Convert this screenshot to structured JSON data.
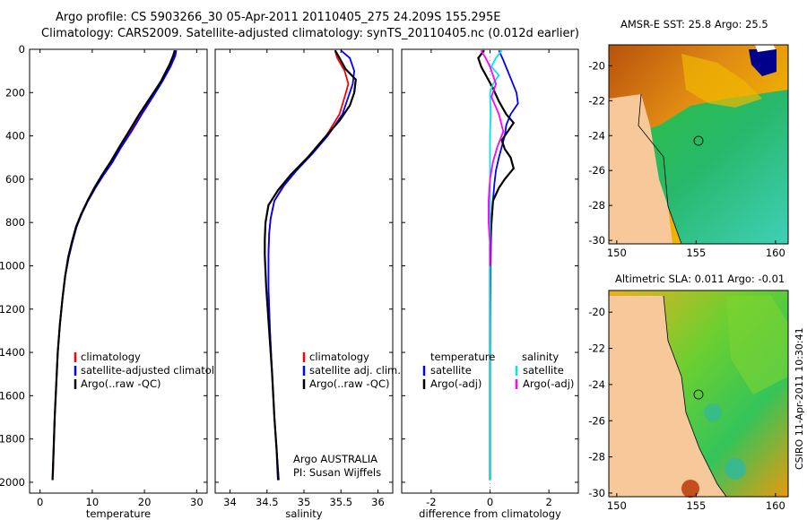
{
  "title_line1": "Argo profile: CS 5903266_30 05-Apr-2011 20110405_275 24.209S 155.295E",
  "title_line2": "Climatology: CARS2009. Satellite-adjusted climatology: synTS_20110405.nc (0.012d earlier)",
  "colors": {
    "climatology": "#ff0000",
    "satellite": "#0000ff",
    "argo": "#000000",
    "sat_salinity": "#00e5ee",
    "argo_adj_salinity": "#ff00ff"
  },
  "chart_data": [
    {
      "type": "line",
      "xlabel": "temperature",
      "xlim": [
        -2,
        32
      ],
      "ylim": [
        0,
        2050
      ],
      "yticks": [
        0,
        200,
        400,
        600,
        800,
        1000,
        1200,
        1400,
        1600,
        1800,
        2000
      ],
      "xticks": [
        0,
        10,
        20,
        30
      ],
      "legend": [
        "climatology",
        "satellite-adjusted climatology",
        "Argo(..raw -QC)"
      ],
      "series": [
        {
          "name": "climatology",
          "color": "#ff0000",
          "points": [
            [
              25.9,
              5
            ],
            [
              25.7,
              30
            ],
            [
              24.7,
              80
            ],
            [
              23.2,
              150
            ],
            [
              21.4,
              220
            ],
            [
              19.3,
              300
            ],
            [
              17.3,
              380
            ],
            [
              15.5,
              450
            ],
            [
              13.8,
              520
            ],
            [
              12.1,
              580
            ],
            [
              10.6,
              640
            ],
            [
              9.2,
              700
            ],
            [
              8.0,
              760
            ],
            [
              7.0,
              820
            ],
            [
              6.2,
              890
            ],
            [
              5.5,
              960
            ],
            [
              4.8,
              1050
            ],
            [
              4.3,
              1150
            ],
            [
              3.8,
              1270
            ],
            [
              3.4,
              1400
            ],
            [
              3.1,
              1550
            ],
            [
              2.8,
              1700
            ],
            [
              2.6,
              1850
            ],
            [
              2.5,
              1960
            ]
          ]
        },
        {
          "name": "satellite-adjusted climatology",
          "color": "#0000ff",
          "points": [
            [
              26.1,
              5
            ],
            [
              25.9,
              30
            ],
            [
              25.0,
              80
            ],
            [
              23.4,
              150
            ],
            [
              21.6,
              220
            ],
            [
              19.5,
              300
            ],
            [
              17.5,
              380
            ],
            [
              15.6,
              450
            ],
            [
              13.9,
              520
            ],
            [
              12.2,
              580
            ],
            [
              10.6,
              640
            ],
            [
              9.2,
              700
            ],
            [
              8.0,
              760
            ],
            [
              7.0,
              820
            ],
            [
              6.2,
              890
            ],
            [
              5.5,
              960
            ],
            [
              4.8,
              1050
            ],
            [
              4.3,
              1150
            ],
            [
              3.8,
              1270
            ],
            [
              3.4,
              1400
            ],
            [
              3.1,
              1550
            ],
            [
              2.8,
              1700
            ],
            [
              2.6,
              1850
            ],
            [
              2.4,
              1990
            ]
          ]
        },
        {
          "name": "Argo(..raw -QC)",
          "color": "#000000",
          "points": [
            [
              25.8,
              5
            ],
            [
              25.5,
              30
            ],
            [
              24.8,
              70
            ],
            [
              23.1,
              150
            ],
            [
              21.2,
              220
            ],
            [
              19.0,
              300
            ],
            [
              17.0,
              380
            ],
            [
              15.2,
              450
            ],
            [
              13.5,
              520
            ],
            [
              11.9,
              580
            ],
            [
              10.4,
              640
            ],
            [
              9.1,
              700
            ],
            [
              7.9,
              760
            ],
            [
              6.9,
              820
            ],
            [
              6.1,
              890
            ],
            [
              5.4,
              960
            ],
            [
              4.8,
              1050
            ],
            [
              4.3,
              1150
            ],
            [
              3.8,
              1270
            ],
            [
              3.4,
              1400
            ],
            [
              3.1,
              1550
            ],
            [
              2.8,
              1700
            ],
            [
              2.6,
              1850
            ],
            [
              2.4,
              1990
            ]
          ]
        }
      ]
    },
    {
      "type": "line",
      "xlabel": "salinity",
      "xlim": [
        33.8,
        36.2
      ],
      "ylim": [
        0,
        2050
      ],
      "xticks": [
        34,
        34.5,
        35,
        35.5,
        36
      ],
      "legend": [
        "climatology",
        "satellite adj. clim.",
        "Argo(..raw -QC)"
      ],
      "annotation": [
        "Argo AUSTRALIA",
        "PI: Susan Wijffels"
      ],
      "series": [
        {
          "name": "climatology",
          "color": "#ff0000",
          "points": [
            [
              35.42,
              5
            ],
            [
              35.45,
              40
            ],
            [
              35.55,
              100
            ],
            [
              35.6,
              160
            ],
            [
              35.55,
              220
            ],
            [
              35.48,
              300
            ],
            [
              35.3,
              400
            ],
            [
              35.1,
              480
            ],
            [
              34.88,
              560
            ],
            [
              34.72,
              630
            ],
            [
              34.6,
              700
            ],
            [
              34.55,
              780
            ],
            [
              34.53,
              850
            ],
            [
              34.52,
              950
            ],
            [
              34.52,
              1100
            ],
            [
              34.54,
              1300
            ],
            [
              34.57,
              1500
            ],
            [
              34.6,
              1700
            ],
            [
              34.63,
              1850
            ],
            [
              34.66,
              1990
            ]
          ]
        },
        {
          "name": "satellite adj. clim.",
          "color": "#0000ff",
          "points": [
            [
              35.5,
              5
            ],
            [
              35.62,
              40
            ],
            [
              35.68,
              100
            ],
            [
              35.66,
              160
            ],
            [
              35.6,
              220
            ],
            [
              35.52,
              300
            ],
            [
              35.32,
              400
            ],
            [
              35.12,
              480
            ],
            [
              34.9,
              560
            ],
            [
              34.73,
              630
            ],
            [
              34.6,
              700
            ],
            [
              34.55,
              780
            ],
            [
              34.53,
              850
            ],
            [
              34.52,
              950
            ],
            [
              34.52,
              1100
            ],
            [
              34.54,
              1300
            ],
            [
              34.57,
              1500
            ],
            [
              34.6,
              1700
            ],
            [
              34.63,
              1850
            ],
            [
              34.66,
              1990
            ]
          ]
        },
        {
          "name": "Argo(..raw -QC)",
          "color": "#000000",
          "points": [
            [
              35.42,
              5
            ],
            [
              35.48,
              40
            ],
            [
              35.56,
              90
            ],
            [
              35.7,
              140
            ],
            [
              35.68,
              200
            ],
            [
              35.62,
              260
            ],
            [
              35.48,
              330
            ],
            [
              35.25,
              420
            ],
            [
              35.05,
              500
            ],
            [
              34.82,
              580
            ],
            [
              34.65,
              650
            ],
            [
              34.52,
              720
            ],
            [
              34.48,
              800
            ],
            [
              34.47,
              880
            ],
            [
              34.47,
              950
            ],
            [
              34.49,
              1100
            ],
            [
              34.53,
              1300
            ],
            [
              34.57,
              1500
            ],
            [
              34.6,
              1700
            ],
            [
              34.63,
              1850
            ],
            [
              34.65,
              1990
            ]
          ]
        }
      ]
    },
    {
      "type": "line",
      "xlabel": "difference from climatology",
      "xlim": [
        -3,
        3
      ],
      "ylim": [
        0,
        2050
      ],
      "xticks": [
        -2,
        0,
        2
      ],
      "legend_left_header": "temperature",
      "legend_right_header": "salinity",
      "legend": [
        "satellite",
        "Argo(-adj)",
        "satellite",
        "Argo(-adj)"
      ],
      "series": [
        {
          "name": "temperature satellite",
          "color": "#0000ff",
          "points": [
            [
              0.3,
              5
            ],
            [
              0.45,
              50
            ],
            [
              0.6,
              100
            ],
            [
              0.75,
              150
            ],
            [
              0.9,
              200
            ],
            [
              0.95,
              250
            ],
            [
              0.7,
              300
            ],
            [
              0.55,
              350
            ],
            [
              0.5,
              400
            ],
            [
              0.4,
              450
            ],
            [
              0.3,
              500
            ],
            [
              0.2,
              560
            ],
            [
              0.15,
              620
            ],
            [
              0.1,
              700
            ],
            [
              0.05,
              800
            ],
            [
              0.03,
              900
            ],
            [
              0.02,
              1000
            ],
            [
              0.01,
              1200
            ],
            [
              0.0,
              1500
            ],
            [
              0.0,
              1800
            ],
            [
              0.0,
              1990
            ]
          ]
        },
        {
          "name": "temperature Argo(-adj)",
          "color": "#000000",
          "points": [
            [
              -0.2,
              5
            ],
            [
              -0.4,
              40
            ],
            [
              -0.3,
              80
            ],
            [
              -0.1,
              130
            ],
            [
              0.1,
              180
            ],
            [
              0.3,
              240
            ],
            [
              0.55,
              300
            ],
            [
              0.8,
              340
            ],
            [
              0.6,
              380
            ],
            [
              0.4,
              420
            ],
            [
              0.5,
              460
            ],
            [
              0.7,
              500
            ],
            [
              0.8,
              550
            ],
            [
              0.5,
              600
            ],
            [
              0.3,
              640
            ],
            [
              0.1,
              700
            ],
            [
              0.05,
              800
            ],
            [
              0.0,
              900
            ],
            [
              0.0,
              1100
            ],
            [
              0.0,
              1400
            ],
            [
              0.0,
              1700
            ],
            [
              0.0,
              1990
            ]
          ]
        },
        {
          "name": "salinity satellite",
          "color": "#00e5ee",
          "points": [
            [
              0.4,
              5
            ],
            [
              0.2,
              40
            ],
            [
              0.05,
              80
            ],
            [
              0.3,
              120
            ],
            [
              0.1,
              160
            ],
            [
              0.0,
              200
            ],
            [
              0.02,
              300
            ],
            [
              0.0,
              400
            ],
            [
              0.0,
              600
            ],
            [
              0.0,
              900
            ],
            [
              0.0,
              1200
            ],
            [
              0.0,
              1500
            ],
            [
              0.0,
              1800
            ],
            [
              0.0,
              1990
            ]
          ]
        },
        {
          "name": "salinity Argo(-adj)",
          "color": "#ff00ff",
          "points": [
            [
              -0.3,
              5
            ],
            [
              -0.15,
              40
            ],
            [
              0.0,
              80
            ],
            [
              0.1,
              120
            ],
            [
              0.2,
              160
            ],
            [
              0.05,
              220
            ],
            [
              0.3,
              300
            ],
            [
              0.45,
              380
            ],
            [
              0.25,
              450
            ],
            [
              0.1,
              520
            ],
            [
              0.0,
              600
            ],
            [
              -0.05,
              700
            ],
            [
              -0.05,
              800
            ],
            [
              0.0,
              900
            ],
            [
              0.0,
              1000
            ]
          ]
        }
      ]
    }
  ],
  "map_top": {
    "title": "AMSR-E SST: 25.8 Argo: 25.5",
    "xticks": [
      "150",
      "155",
      "160"
    ],
    "yticks": [
      "-20",
      "-22",
      "-24",
      "-26",
      "-28",
      "-30"
    ]
  },
  "map_bottom": {
    "title": "Altimetric SLA: 0.011 Argo: -0.01",
    "xticks": [
      "150",
      "155",
      "160"
    ],
    "yticks": [
      "-20",
      "-22",
      "-24",
      "-26",
      "-28",
      "-30"
    ]
  },
  "credit": "CSIRO 11-Apr-2011 10:30:41"
}
